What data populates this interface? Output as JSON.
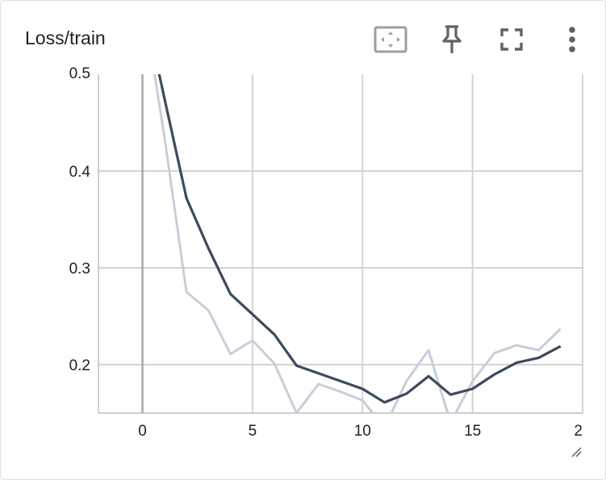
{
  "card": {
    "title": "Loss/train"
  },
  "toolbar": {
    "fit_icon": "fit-domain-icon",
    "pin_icon": "pin-icon",
    "fullscreen_icon": "fullscreen-icon",
    "more_icon": "more-vert-icon"
  },
  "chart_data": {
    "type": "line",
    "title": "Loss/train",
    "xlabel": "",
    "ylabel": "",
    "xlim": [
      -2,
      20
    ],
    "ylim": [
      0.15,
      0.5
    ],
    "x_ticks": [
      "0",
      "5",
      "10",
      "15",
      "2"
    ],
    "y_ticks": [
      "0.5",
      "0.4",
      "0.3",
      "0.2"
    ],
    "grid": true,
    "series": [
      {
        "role": "raw",
        "color": "#c8ced9",
        "x": [
          0,
          1,
          2,
          3,
          4,
          5,
          6,
          7,
          8,
          9,
          10,
          11,
          12,
          13,
          14,
          15,
          16,
          17,
          18,
          19
        ],
        "y": [
          0.58,
          0.435,
          0.275,
          0.256,
          0.211,
          0.225,
          0.201,
          0.15,
          0.18,
          0.172,
          0.163,
          0.135,
          0.183,
          0.215,
          0.14,
          0.183,
          0.212,
          0.22,
          0.215,
          0.237
        ]
      },
      {
        "role": "smoothed",
        "color": "#3c4a5e",
        "x": [
          0,
          1,
          2,
          3,
          4,
          5,
          6,
          7,
          8,
          9,
          10,
          11,
          12,
          13,
          14,
          15,
          16,
          17,
          18,
          19
        ],
        "y": [
          0.58,
          0.475,
          0.372,
          0.32,
          0.273,
          0.252,
          0.231,
          0.199,
          0.191,
          0.183,
          0.175,
          0.161,
          0.17,
          0.188,
          0.169,
          0.175,
          0.19,
          0.202,
          0.207,
          0.219
        ]
      }
    ]
  }
}
